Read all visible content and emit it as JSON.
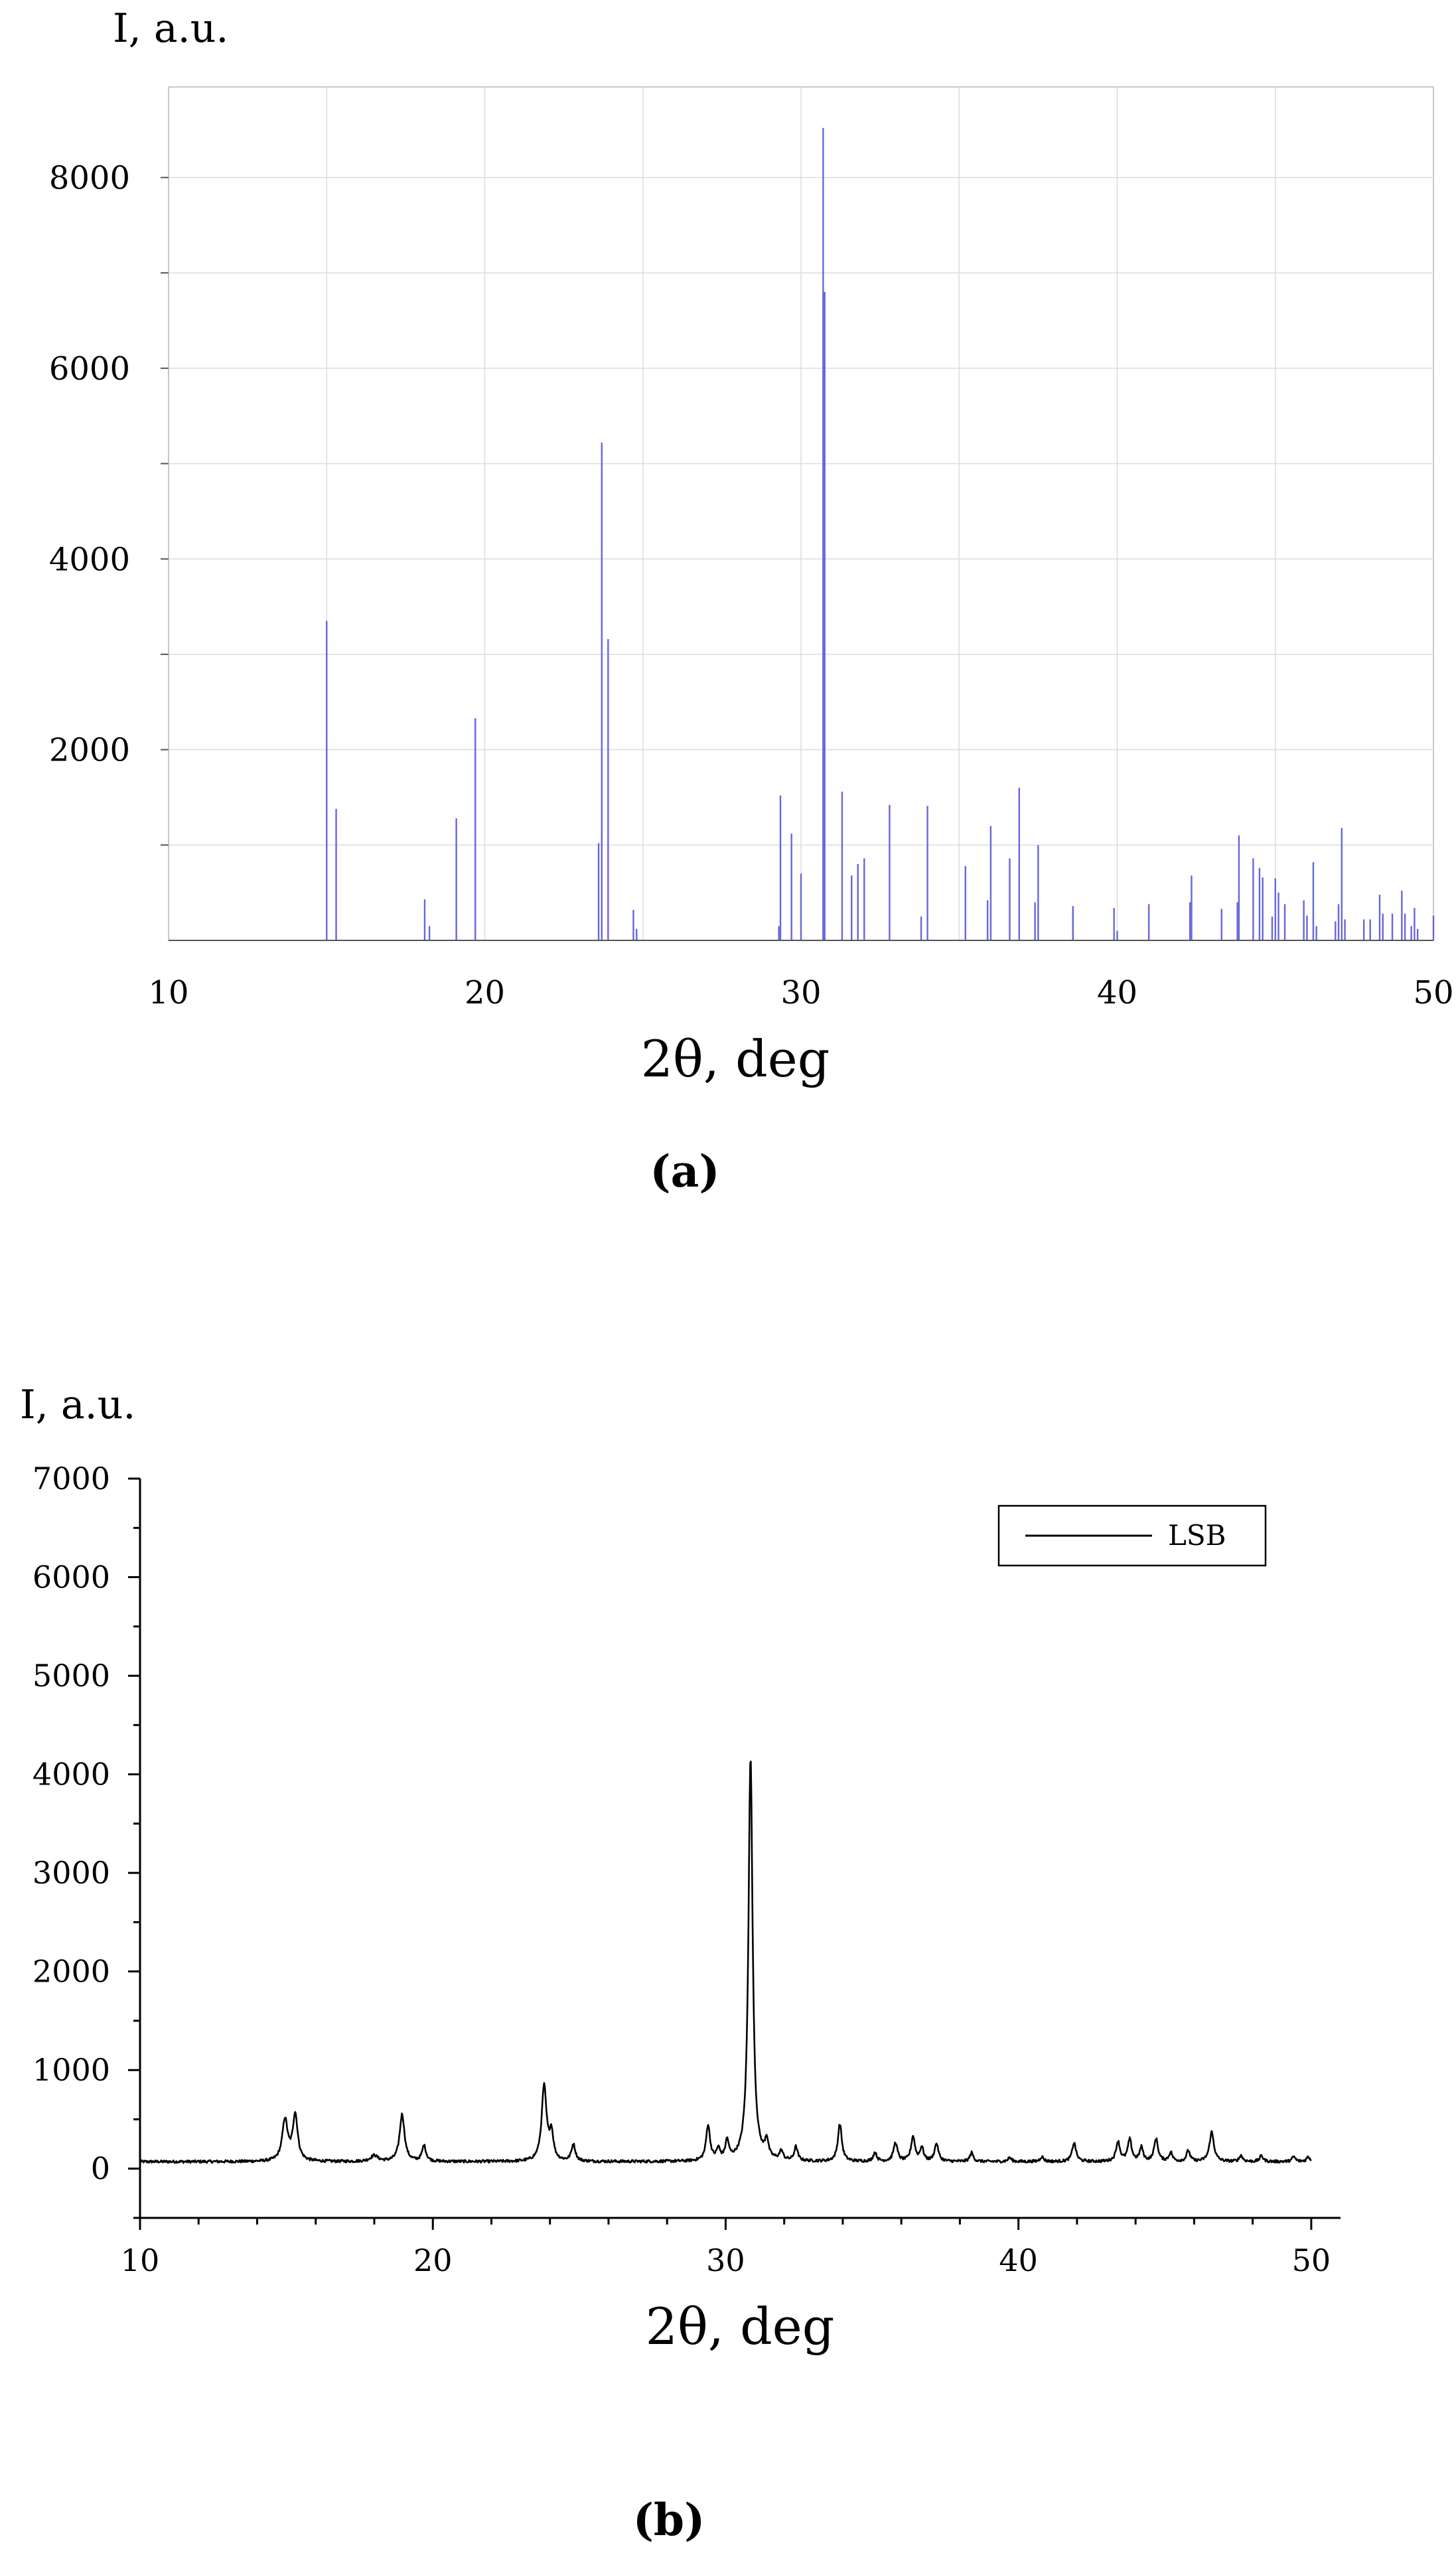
{
  "chart_data": [
    {
      "type": "bar",
      "panel_label": "(a)",
      "ylabel": "I, a.u.",
      "xlabel": "2θ, deg",
      "xlim": [
        10,
        50
      ],
      "ylim": [
        0,
        8950
      ],
      "x_ticks": [
        "10",
        "20",
        "30",
        "40",
        "50"
      ],
      "y_ticks": [
        "2000",
        "4000",
        "6000",
        "8000"
      ],
      "grid": true,
      "peaks": [
        {
          "x": 15.0,
          "y": 3350
        },
        {
          "x": 15.3,
          "y": 1380
        },
        {
          "x": 18.1,
          "y": 430
        },
        {
          "x": 18.25,
          "y": 150
        },
        {
          "x": 19.1,
          "y": 1280
        },
        {
          "x": 19.7,
          "y": 2330
        },
        {
          "x": 23.6,
          "y": 1020
        },
        {
          "x": 23.7,
          "y": 5220
        },
        {
          "x": 23.9,
          "y": 3160
        },
        {
          "x": 24.7,
          "y": 320
        },
        {
          "x": 24.8,
          "y": 120
        },
        {
          "x": 29.3,
          "y": 150
        },
        {
          "x": 29.35,
          "y": 1520
        },
        {
          "x": 29.7,
          "y": 1120
        },
        {
          "x": 30.0,
          "y": 700
        },
        {
          "x": 30.7,
          "y": 8520
        },
        {
          "x": 30.75,
          "y": 6800
        },
        {
          "x": 31.3,
          "y": 1560
        },
        {
          "x": 31.6,
          "y": 680
        },
        {
          "x": 31.8,
          "y": 800
        },
        {
          "x": 32.0,
          "y": 860
        },
        {
          "x": 32.8,
          "y": 1420
        },
        {
          "x": 33.8,
          "y": 250
        },
        {
          "x": 34.0,
          "y": 1410
        },
        {
          "x": 35.2,
          "y": 780
        },
        {
          "x": 35.9,
          "y": 420
        },
        {
          "x": 36.0,
          "y": 1200
        },
        {
          "x": 36.6,
          "y": 860
        },
        {
          "x": 36.9,
          "y": 1600
        },
        {
          "x": 37.4,
          "y": 400
        },
        {
          "x": 37.5,
          "y": 1000
        },
        {
          "x": 38.6,
          "y": 360
        },
        {
          "x": 39.9,
          "y": 340
        },
        {
          "x": 40.0,
          "y": 100
        },
        {
          "x": 41.0,
          "y": 380
        },
        {
          "x": 42.3,
          "y": 400
        },
        {
          "x": 42.35,
          "y": 680
        },
        {
          "x": 43.3,
          "y": 330
        },
        {
          "x": 43.8,
          "y": 400
        },
        {
          "x": 43.85,
          "y": 1100
        },
        {
          "x": 44.3,
          "y": 860
        },
        {
          "x": 44.5,
          "y": 760
        },
        {
          "x": 44.6,
          "y": 660
        },
        {
          "x": 44.9,
          "y": 250
        },
        {
          "x": 45.0,
          "y": 650
        },
        {
          "x": 45.1,
          "y": 500
        },
        {
          "x": 45.3,
          "y": 380
        },
        {
          "x": 45.9,
          "y": 420
        },
        {
          "x": 46.0,
          "y": 260
        },
        {
          "x": 46.2,
          "y": 820
        },
        {
          "x": 46.3,
          "y": 150
        },
        {
          "x": 46.9,
          "y": 200
        },
        {
          "x": 47.0,
          "y": 380
        },
        {
          "x": 47.1,
          "y": 1180
        },
        {
          "x": 47.2,
          "y": 220
        },
        {
          "x": 47.8,
          "y": 220
        },
        {
          "x": 48.0,
          "y": 220
        },
        {
          "x": 48.3,
          "y": 480
        },
        {
          "x": 48.4,
          "y": 280
        },
        {
          "x": 48.7,
          "y": 280
        },
        {
          "x": 49.0,
          "y": 520
        },
        {
          "x": 49.1,
          "y": 280
        },
        {
          "x": 49.3,
          "y": 150
        },
        {
          "x": 49.4,
          "y": 340
        },
        {
          "x": 49.5,
          "y": 120
        },
        {
          "x": 50.0,
          "y": 260
        }
      ],
      "colors": {
        "peak": "#6666dd",
        "grid": "#dcdcdc"
      }
    },
    {
      "type": "line",
      "panel_label": "(b)",
      "ylabel": "I, a.u.",
      "xlabel": "2θ, deg",
      "xlim": [
        10,
        51
      ],
      "ylim": [
        -500,
        7000
      ],
      "x_ticks": [
        "10",
        "20",
        "30",
        "40",
        "50"
      ],
      "y_ticks": [
        "0",
        "1000",
        "2000",
        "3000",
        "4000",
        "5000",
        "6000",
        "7000"
      ],
      "legend": {
        "position": "top-right",
        "entries": [
          "LSB"
        ]
      },
      "series": [
        {
          "name": "LSB",
          "color": "#000000",
          "baseline": 70,
          "peaks": [
            {
              "x": 14.95,
              "y": 420,
              "w": 0.11
            },
            {
              "x": 15.3,
              "y": 470,
              "w": 0.1
            },
            {
              "x": 18.0,
              "y": 60,
              "w": 0.15
            },
            {
              "x": 18.95,
              "y": 480,
              "w": 0.1
            },
            {
              "x": 19.7,
              "y": 160,
              "w": 0.08
            },
            {
              "x": 23.8,
              "y": 760,
              "w": 0.1
            },
            {
              "x": 24.05,
              "y": 270,
              "w": 0.08
            },
            {
              "x": 24.8,
              "y": 170,
              "w": 0.08
            },
            {
              "x": 29.4,
              "y": 360,
              "w": 0.08
            },
            {
              "x": 29.75,
              "y": 110,
              "w": 0.07
            },
            {
              "x": 30.05,
              "y": 190,
              "w": 0.07
            },
            {
              "x": 30.85,
              "y": 4100,
              "w": 0.085
            },
            {
              "x": 31.4,
              "y": 180,
              "w": 0.07
            },
            {
              "x": 31.9,
              "y": 90,
              "w": 0.07
            },
            {
              "x": 32.4,
              "y": 140,
              "w": 0.07
            },
            {
              "x": 33.9,
              "y": 380,
              "w": 0.08
            },
            {
              "x": 35.1,
              "y": 90,
              "w": 0.07
            },
            {
              "x": 35.8,
              "y": 190,
              "w": 0.08
            },
            {
              "x": 36.4,
              "y": 250,
              "w": 0.08
            },
            {
              "x": 36.7,
              "y": 140,
              "w": 0.07
            },
            {
              "x": 37.2,
              "y": 180,
              "w": 0.08
            },
            {
              "x": 38.4,
              "y": 90,
              "w": 0.07
            },
            {
              "x": 39.7,
              "y": 40,
              "w": 0.07
            },
            {
              "x": 40.8,
              "y": 50,
              "w": 0.07
            },
            {
              "x": 41.9,
              "y": 190,
              "w": 0.08
            },
            {
              "x": 43.4,
              "y": 200,
              "w": 0.08
            },
            {
              "x": 43.8,
              "y": 220,
              "w": 0.08
            },
            {
              "x": 44.2,
              "y": 140,
              "w": 0.07
            },
            {
              "x": 44.7,
              "y": 230,
              "w": 0.08
            },
            {
              "x": 45.2,
              "y": 90,
              "w": 0.07
            },
            {
              "x": 45.8,
              "y": 110,
              "w": 0.07
            },
            {
              "x": 46.6,
              "y": 300,
              "w": 0.09
            },
            {
              "x": 47.6,
              "y": 60,
              "w": 0.07
            },
            {
              "x": 48.3,
              "y": 60,
              "w": 0.07
            },
            {
              "x": 49.4,
              "y": 50,
              "w": 0.07
            },
            {
              "x": 49.9,
              "y": 50,
              "w": 0.07
            }
          ]
        }
      ]
    }
  ]
}
